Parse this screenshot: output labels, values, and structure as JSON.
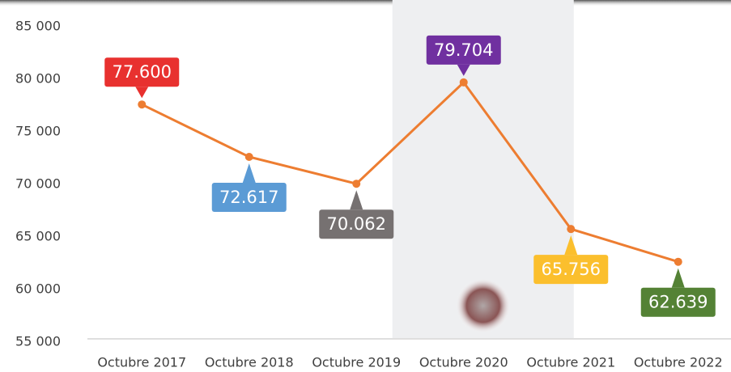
{
  "chart_data": {
    "type": "line",
    "categories": [
      "Octubre 2017",
      "Octubre 2018",
      "Octubre 2019",
      "Octubre 2020",
      "Octubre 2021",
      "Octubre 2022"
    ],
    "series": [
      {
        "color": "#ed7d31",
        "values": [
          77600,
          72617,
          70062,
          79704,
          65756,
          62639
        ],
        "value_labels": [
          "77.600",
          "72.617",
          "70.062",
          "79.704",
          "65.756",
          "62.639"
        ],
        "label_colors": [
          "#e8312f",
          "#5b9bd5",
          "#767171",
          "#7030a0",
          "#fbbf2d",
          "#548235"
        ]
      }
    ],
    "ylim": [
      55000,
      85000
    ],
    "yticks": [
      {
        "value": 55000,
        "label": "55 000"
      },
      {
        "value": 60000,
        "label": "60 000"
      },
      {
        "value": 65000,
        "label": "65 000"
      },
      {
        "value": 70000,
        "label": "70 000"
      },
      {
        "value": 75000,
        "label": "75 000"
      },
      {
        "value": 80000,
        "label": "80 000"
      },
      {
        "value": 85000,
        "label": "85 000"
      }
    ],
    "highlight_index": 3
  }
}
